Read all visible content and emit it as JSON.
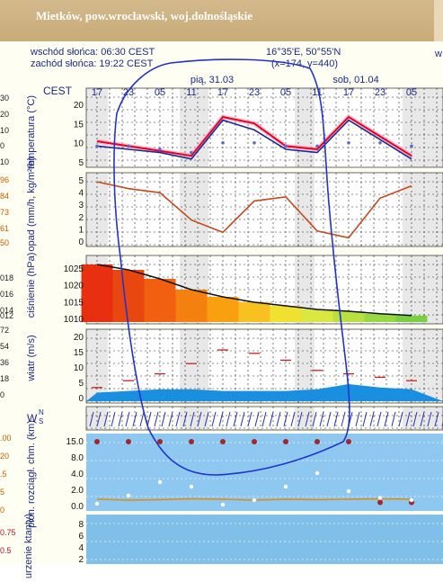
{
  "header": {
    "title": "Mietków, pow.wrocławski, woj.dolnośląskie"
  },
  "sun": {
    "sunrise": "wschód słońca: 06:30 CEST",
    "sunset": "zachód słońca: 19:22 CEST"
  },
  "location": {
    "coords": "16°35'E, 50°55'N",
    "grid": "(x=174, y=440)"
  },
  "timeline": {
    "tz": "CEST",
    "hours": [
      "17",
      "23",
      "05",
      "11",
      "17",
      "23",
      "05",
      "11",
      "17",
      "23",
      "05"
    ],
    "days": [
      "pią, 31.03",
      "sob, 01.04"
    ]
  },
  "panels": {
    "temperature": {
      "label": "temperatura (°C)",
      "ticks": [
        "20",
        "15",
        "10",
        "5"
      ]
    },
    "precip": {
      "label": "opad (mm/h, kg/m²/h)",
      "ticks": [
        "5",
        "4",
        "3",
        "2",
        "1",
        "0"
      ]
    },
    "pressure": {
      "label": "ciśnienie (hPa)",
      "ticks": [
        "1025",
        "1020",
        "1015",
        "1010"
      ]
    },
    "wind": {
      "label": "wiatr (m/s)",
      "ticks": [
        "20",
        "15",
        "10",
        "5",
        "0"
      ]
    },
    "winddir": {
      "label": "W",
      "compass": [
        "N",
        "S"
      ]
    },
    "visibility": {
      "label": "pion. rozciągł. chm. (km)",
      "ticks": [
        "15.0",
        "8.0",
        "4.0",
        "2.0",
        "0.0"
      ]
    },
    "extra": {
      "label": "urzenie ktanty)",
      "ticks": [
        "8",
        "6",
        "4",
        "2"
      ]
    }
  },
  "left_numbers": {
    "temp": [
      "30",
      "20",
      "10",
      "0",
      "10"
    ],
    "precip": [
      "96",
      "84",
      "73",
      "61",
      "50"
    ],
    "pressure": [
      "018",
      "016",
      "014",
      "012"
    ],
    "wind": [
      "72",
      "54",
      "36",
      "18",
      "0"
    ],
    "vis": [
      ".00",
      "20",
      ".5",
      "5",
      "0"
    ],
    "extra": [
      "0.75",
      "0.5"
    ]
  },
  "colors": {
    "banner": "#c9ab78",
    "axis_text": "#1a2a8a",
    "annotation": "#2233cc",
    "temp_line": "#e8002a",
    "precip_line": "#c84a1a",
    "wind_fill": "#1a7fd0"
  },
  "chart_data": [
    {
      "type": "line",
      "ylabel": "temperatura (°C)",
      "ylim": [
        3,
        23
      ],
      "x": [
        "17",
        "23",
        "05",
        "11",
        "17",
        "23",
        "05",
        "11",
        "17",
        "23",
        "05"
      ],
      "series": [
        {
          "values": [
            10.5,
            9,
            7.5,
            6,
            18,
            16,
            9,
            8,
            18,
            12,
            6
          ]
        },
        {
          "values": [
            9,
            8,
            7,
            5,
            17,
            14,
            8,
            7,
            17,
            11,
            5
          ]
        },
        {
          "values": [
            9,
            9,
            8,
            7,
            10,
            10,
            9,
            9,
            10,
            10,
            9
          ]
        }
      ]
    },
    {
      "type": "line",
      "ylabel": "opad (mm/h, kg/m²/h)",
      "ylim": [
        0,
        5
      ],
      "x": [
        "17",
        "23",
        "05",
        "11",
        "17",
        "23",
        "05",
        "11",
        "17",
        "23",
        "05"
      ],
      "values": [
        4.6,
        4.1,
        3.8,
        1.8,
        0.9,
        3.2,
        3.5,
        1.0,
        0.5,
        3.4,
        4.3
      ]
    },
    {
      "type": "area",
      "ylabel": "ciśnienie (hPa)",
      "ylim": [
        1010,
        1028
      ],
      "x": [
        "17",
        "23",
        "05",
        "11",
        "17",
        "23",
        "05",
        "11",
        "17",
        "23",
        "05"
      ],
      "values": [
        1026,
        1024.5,
        1022,
        1019,
        1017,
        1015.5,
        1014.5,
        1013.5,
        1013,
        1012.3,
        1011.8
      ]
    },
    {
      "type": "area",
      "ylabel": "wiatr (m/s)",
      "ylim": [
        0,
        20
      ],
      "x": [
        "17",
        "23",
        "05",
        "11",
        "17",
        "23",
        "05",
        "11",
        "17",
        "23",
        "05"
      ],
      "series": [
        {
          "values": [
            2.5,
            3,
            3.5,
            3.5,
            3,
            3,
            3,
            3.5,
            5,
            4,
            3.5
          ]
        },
        {
          "values": [
            4,
            6,
            8,
            11,
            15,
            14,
            12,
            9,
            8,
            7,
            6
          ]
        }
      ]
    },
    {
      "type": "scatter",
      "ylabel": "pion. rozciągł. chm. (km)",
      "x": [
        "17",
        "23",
        "05",
        "11",
        "17",
        "23",
        "05",
        "11",
        "17",
        "23",
        "05"
      ],
      "series": [
        {
          "values": [
            15.0,
            15.0,
            15.0,
            15.0,
            15.0,
            15.0,
            15.0,
            15.0,
            15.0,
            1.5,
            1.5
          ]
        },
        {
          "values": [
            1.2,
            3.0,
            6.0,
            5.0,
            1.0,
            2.0,
            5.0,
            8.0,
            4.0,
            2.5,
            2.0
          ]
        },
        {
          "values": [
            2.2,
            2.0,
            2.1,
            2.3,
            2.2,
            2.0,
            2.2,
            2.1,
            2.2,
            2.3,
            2.2
          ]
        }
      ]
    }
  ]
}
